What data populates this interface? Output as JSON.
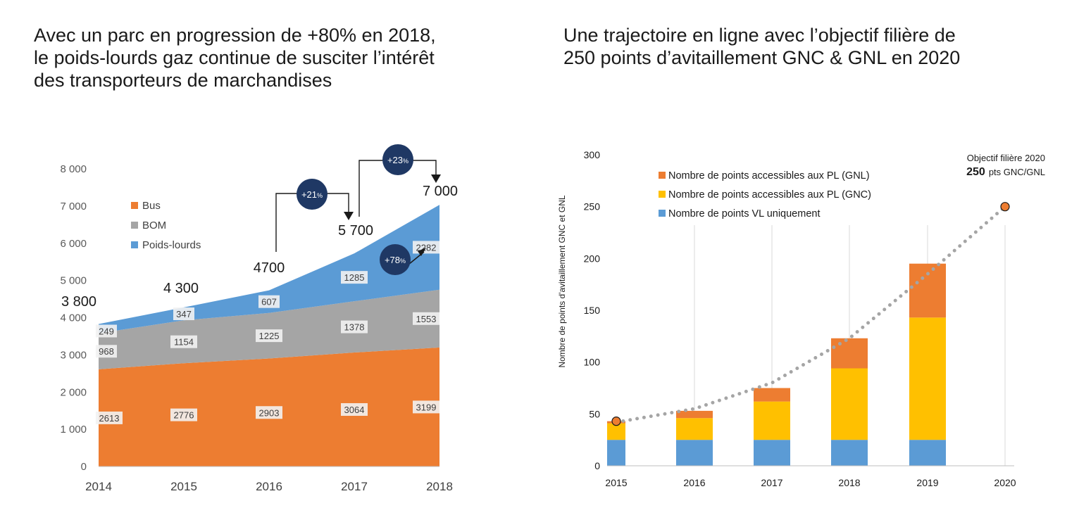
{
  "headings": {
    "left": [
      "Avec un parc en progression de +80% en 2018,",
      "le poids-lourds gaz continue de susciter l’intérêt",
      "des transporteurs de marchandises"
    ],
    "right": [
      "Une trajectoire en ligne avec l’objectif filière de",
      "250 points d’avitaillement GNC & GNL en 2020"
    ]
  },
  "chart_data": [
    {
      "type": "area",
      "stacked": true,
      "x": [
        2014,
        2015,
        2016,
        2017,
        2018
      ],
      "x_tick_labels": [
        "2014",
        "2015",
        "2016",
        "2017",
        "2018"
      ],
      "y_tick_labels": [
        "0",
        "1 000",
        "2 000",
        "3 000",
        "4 000",
        "5 000",
        "6 000",
        "7 000",
        "8 000"
      ],
      "ylim": [
        0,
        8000
      ],
      "series": [
        {
          "name": "Bus",
          "color": "#ed7d31",
          "values": [
            2613,
            2776,
            2903,
            3064,
            3199
          ],
          "labels": [
            "2613",
            "2776",
            "2903",
            "3064",
            "3199"
          ]
        },
        {
          "name": "BOM",
          "color": "#a5a5a5",
          "values": [
            968,
            1154,
            1225,
            1378,
            1553
          ],
          "labels": [
            "968",
            "1154",
            "1225",
            "1378",
            "1553"
          ]
        },
        {
          "name": "Poids-lourds",
          "color": "#5b9bd5",
          "values": [
            249,
            347,
            607,
            1285,
            2282
          ],
          "labels": [
            "249",
            "347",
            "607",
            "1285",
            "2282"
          ]
        }
      ],
      "totals": [
        "3 800",
        "4 300",
        "4700",
        "5 700",
        "7 000"
      ],
      "legend_position": "top-left",
      "grid": false,
      "annotations": {
        "growth_2017": "+21",
        "growth_2018": "+23",
        "growth_pl_2018": "+78",
        "percent_sign": "%"
      }
    },
    {
      "type": "bar",
      "stacked": true,
      "categories": [
        "2015",
        "2016",
        "2017",
        "2018",
        "2019",
        "2020"
      ],
      "ylabel": "Nombre de points d'avitaillement GNC et GNL",
      "ylim": [
        0,
        300
      ],
      "y_tick_labels": [
        "0",
        "50",
        "100",
        "150",
        "200",
        "250",
        "300"
      ],
      "series": [
        {
          "name": "Nombre de points VL uniquement",
          "color": "#5b9bd5",
          "values": [
            25,
            25,
            25,
            25,
            25,
            0
          ]
        },
        {
          "name": "Nombre de points accessibles aux PL (GNC)",
          "color": "#ffc000",
          "values": [
            16,
            21,
            37,
            69,
            118,
            0
          ]
        },
        {
          "name": "Nombre de points accessibles aux PL (GNL)",
          "color": "#ed7d31",
          "values": [
            2,
            7,
            13,
            29,
            52,
            0
          ]
        }
      ],
      "trend": {
        "style": "dotted",
        "color": "#a5a5a5",
        "values": [
          42,
          55,
          80,
          123,
          185,
          250
        ]
      },
      "milestones": [
        {
          "x": "2015",
          "y": 43
        },
        {
          "x": "2020",
          "y": 250
        }
      ],
      "objective": {
        "title": "Objectif filière 2020",
        "value": "250",
        "unit": "pts GNC/GNL"
      },
      "legend_position": "top-left",
      "grid": "vertical"
    }
  ]
}
